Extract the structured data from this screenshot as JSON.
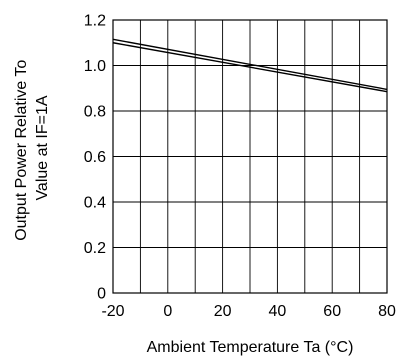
{
  "chart_data": {
    "type": "line",
    "title": "",
    "xlabel": "Ambient Temperature Ta (°C)",
    "ylabel": [
      "Output Power Relative To",
      "Value at IF=1A"
    ],
    "xlim": [
      -20,
      80
    ],
    "ylim": [
      0,
      1.2
    ],
    "x_ticks": [
      -20,
      0,
      20,
      40,
      60,
      80
    ],
    "y_ticks": [
      0,
      0.2,
      0.4,
      0.6,
      0.8,
      1.0,
      1.2
    ],
    "x_tick_labels": [
      "-20",
      "0",
      "20",
      "40",
      "60",
      "80"
    ],
    "y_tick_labels": [
      "0",
      "0.2",
      "0.4",
      "0.6",
      "0.8",
      "1.0",
      "1.2"
    ],
    "x_minor_step": 10,
    "grid": true,
    "series": [
      {
        "x": [
          -20,
          80
        ],
        "y": [
          1.115,
          0.895
        ],
        "color": "#000000"
      },
      {
        "x": [
          -20,
          80
        ],
        "y": [
          1.1,
          0.885
        ],
        "color": "#000000"
      }
    ]
  }
}
